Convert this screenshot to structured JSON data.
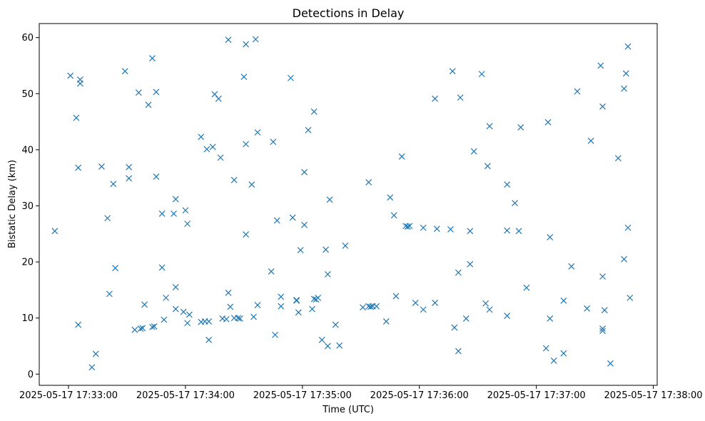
{
  "chart_data": {
    "type": "scatter",
    "title": "Detections in Delay",
    "xlabel": "Time (UTC)",
    "ylabel": "Bistatic Delay (km)",
    "marker": "x",
    "color": "#1f77b4",
    "grid": false,
    "legend": "none",
    "x_unit": "UTC time (HH:MM:SS) on 2025-05-17",
    "xlim": [
      "17:32:45",
      "17:38:02"
    ],
    "ylim": [
      -2,
      62.5
    ],
    "x_ticks": [
      "17:33:00",
      "17:34:00",
      "17:35:00",
      "17:36:00",
      "17:37:00",
      "17:38:00"
    ],
    "x_tick_labels": [
      "2025-05-17 17:33:00",
      "2025-05-17 17:34:00",
      "2025-05-17 17:35:00",
      "2025-05-17 17:36:00",
      "2025-05-17 17:37:00",
      "2025-05-17 17:38:00"
    ],
    "y_ticks": [
      0,
      10,
      20,
      30,
      40,
      50,
      60
    ],
    "points": [
      [
        "17:32:53",
        25.5
      ],
      [
        "17:33:01",
        53.2
      ],
      [
        "17:33:06",
        52.5
      ],
      [
        "17:33:06",
        51.8
      ],
      [
        "17:33:04",
        45.7
      ],
      [
        "17:33:05",
        36.8
      ],
      [
        "17:33:05",
        8.8
      ],
      [
        "17:33:12",
        1.2
      ],
      [
        "17:33:14",
        3.6
      ],
      [
        "17:33:17",
        37.0
      ],
      [
        "17:33:20",
        27.8
      ],
      [
        "17:33:23",
        33.9
      ],
      [
        "17:33:24",
        18.9
      ],
      [
        "17:33:21",
        14.3
      ],
      [
        "17:33:29",
        54.0
      ],
      [
        "17:33:31",
        34.9
      ],
      [
        "17:33:31",
        36.9
      ],
      [
        "17:33:34",
        7.9
      ],
      [
        "17:33:36",
        50.2
      ],
      [
        "17:33:37",
        8.1
      ],
      [
        "17:33:38",
        8.2
      ],
      [
        "17:33:39",
        12.4
      ],
      [
        "17:33:41",
        48.0
      ],
      [
        "17:33:43",
        8.4
      ],
      [
        "17:33:44",
        8.5
      ],
      [
        "17:33:43",
        56.3
      ],
      [
        "17:33:45",
        50.3
      ],
      [
        "17:33:45",
        35.2
      ],
      [
        "17:33:48",
        28.6
      ],
      [
        "17:33:48",
        19.0
      ],
      [
        "17:33:49",
        9.7
      ],
      [
        "17:33:50",
        13.6
      ],
      [
        "17:33:54",
        28.6
      ],
      [
        "17:33:55",
        31.2
      ],
      [
        "17:33:55",
        15.5
      ],
      [
        "17:33:55",
        11.6
      ],
      [
        "17:33:59",
        11.1
      ],
      [
        "17:34:00",
        29.2
      ],
      [
        "17:34:01",
        26.8
      ],
      [
        "17:34:01",
        9.1
      ],
      [
        "17:34:02",
        10.6
      ],
      [
        "17:34:08",
        42.3
      ],
      [
        "17:34:08",
        9.3
      ],
      [
        "17:34:10",
        9.4
      ],
      [
        "17:34:11",
        40.1
      ],
      [
        "17:34:12",
        9.4
      ],
      [
        "17:34:12",
        6.1
      ],
      [
        "17:34:14",
        40.5
      ],
      [
        "17:34:15",
        49.9
      ],
      [
        "17:34:17",
        49.1
      ],
      [
        "17:34:18",
        38.6
      ],
      [
        "17:34:19",
        9.9
      ],
      [
        "17:34:21",
        9.8
      ],
      [
        "17:34:22",
        59.6
      ],
      [
        "17:34:22",
        14.5
      ],
      [
        "17:34:23",
        12.0
      ],
      [
        "17:34:25",
        34.6
      ],
      [
        "17:34:25",
        10.0
      ],
      [
        "17:34:27",
        10.0
      ],
      [
        "17:34:28",
        9.9
      ],
      [
        "17:34:30",
        53.0
      ],
      [
        "17:34:31",
        58.8
      ],
      [
        "17:34:31",
        41.0
      ],
      [
        "17:34:31",
        24.9
      ],
      [
        "17:34:34",
        33.8
      ],
      [
        "17:34:35",
        10.2
      ],
      [
        "17:34:36",
        59.7
      ],
      [
        "17:34:37",
        43.1
      ],
      [
        "17:34:37",
        12.3
      ],
      [
        "17:34:45",
        41.4
      ],
      [
        "17:34:44",
        18.3
      ],
      [
        "17:34:47",
        27.4
      ],
      [
        "17:34:46",
        7.0
      ],
      [
        "17:34:49",
        13.8
      ],
      [
        "17:34:49",
        12.1
      ],
      [
        "17:34:54",
        52.8
      ],
      [
        "17:34:55",
        27.9
      ],
      [
        "17:34:57",
        13.2
      ],
      [
        "17:34:57",
        13.1
      ],
      [
        "17:34:59",
        22.1
      ],
      [
        "17:34:58",
        11.0
      ],
      [
        "17:35:01",
        26.6
      ],
      [
        "17:35:01",
        36.0
      ],
      [
        "17:35:03",
        43.5
      ],
      [
        "17:35:05",
        11.6
      ],
      [
        "17:35:06",
        13.4
      ],
      [
        "17:35:07",
        13.3
      ],
      [
        "17:35:08",
        13.6
      ],
      [
        "17:35:06",
        46.8
      ],
      [
        "17:35:10",
        6.1
      ],
      [
        "17:35:13",
        5.0
      ],
      [
        "17:35:12",
        22.2
      ],
      [
        "17:35:13",
        17.8
      ],
      [
        "17:35:14",
        31.1
      ],
      [
        "17:35:17",
        8.8
      ],
      [
        "17:35:19",
        5.1
      ],
      [
        "17:35:22",
        22.9
      ],
      [
        "17:35:31",
        11.9
      ],
      [
        "17:35:34",
        34.2
      ],
      [
        "17:35:34",
        12.1
      ],
      [
        "17:35:35",
        12.0
      ],
      [
        "17:35:36",
        12.1
      ],
      [
        "17:35:38",
        12.1
      ],
      [
        "17:35:43",
        9.4
      ],
      [
        "17:35:45",
        31.5
      ],
      [
        "17:35:47",
        28.3
      ],
      [
        "17:35:48",
        13.9
      ],
      [
        "17:35:51",
        38.8
      ],
      [
        "17:35:53",
        26.4
      ],
      [
        "17:35:54",
        26.3
      ],
      [
        "17:35:55",
        26.4
      ],
      [
        "17:35:58",
        12.7
      ],
      [
        "17:36:02",
        26.1
      ],
      [
        "17:36:02",
        11.5
      ],
      [
        "17:36:08",
        49.1
      ],
      [
        "17:36:08",
        12.7
      ],
      [
        "17:36:09",
        25.9
      ],
      [
        "17:36:17",
        54.0
      ],
      [
        "17:36:16",
        25.8
      ],
      [
        "17:36:18",
        8.3
      ],
      [
        "17:36:20",
        18.1
      ],
      [
        "17:36:20",
        4.1
      ],
      [
        "17:36:21",
        49.3
      ],
      [
        "17:36:24",
        9.9
      ],
      [
        "17:36:26",
        25.5
      ],
      [
        "17:36:26",
        19.6
      ],
      [
        "17:36:28",
        39.7
      ],
      [
        "17:36:32",
        53.5
      ],
      [
        "17:36:35",
        37.1
      ],
      [
        "17:36:34",
        12.6
      ],
      [
        "17:36:36",
        44.2
      ],
      [
        "17:36:36",
        11.5
      ],
      [
        "17:36:45",
        25.6
      ],
      [
        "17:36:45",
        33.8
      ],
      [
        "17:36:45",
        10.4
      ],
      [
        "17:36:49",
        30.5
      ],
      [
        "17:36:51",
        25.5
      ],
      [
        "17:36:52",
        44.0
      ],
      [
        "17:36:55",
        15.4
      ],
      [
        "17:37:05",
        4.6
      ],
      [
        "17:37:06",
        44.9
      ],
      [
        "17:37:07",
        24.4
      ],
      [
        "17:37:07",
        9.9
      ],
      [
        "17:37:09",
        2.4
      ],
      [
        "17:37:14",
        13.1
      ],
      [
        "17:37:14",
        3.7
      ],
      [
        "17:37:18",
        19.2
      ],
      [
        "17:37:21",
        50.4
      ],
      [
        "17:37:26",
        11.7
      ],
      [
        "17:37:28",
        41.6
      ],
      [
        "17:37:33",
        55.0
      ],
      [
        "17:37:34",
        47.7
      ],
      [
        "17:37:34",
        17.4
      ],
      [
        "17:37:34",
        8.1
      ],
      [
        "17:37:35",
        11.4
      ],
      [
        "17:37:34",
        7.7
      ],
      [
        "17:37:38",
        1.9
      ],
      [
        "17:37:42",
        38.5
      ],
      [
        "17:37:45",
        50.9
      ],
      [
        "17:37:46",
        53.6
      ],
      [
        "17:37:45",
        20.5
      ],
      [
        "17:37:47",
        58.4
      ],
      [
        "17:37:47",
        26.1
      ],
      [
        "17:37:48",
        13.6
      ]
    ]
  }
}
